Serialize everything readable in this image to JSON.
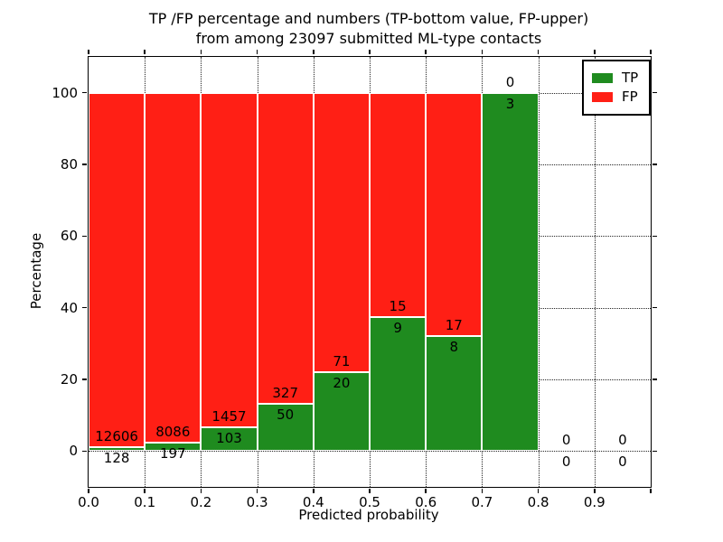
{
  "figure": {
    "title_line1": "TP /FP percentage and numbers (TP-bottom value, FP-upper)",
    "title_line2": "from among 23097 submitted ML-type contacts"
  },
  "axes": {
    "xlabel": "Predicted probability",
    "ylabel": "Percentage"
  },
  "legend": {
    "position": "upper right",
    "items": [
      {
        "label": "TP",
        "color": "#1F8B1F"
      },
      {
        "label": "FP",
        "color": "#FF1F15"
      }
    ]
  },
  "chart_data": {
    "type": "bar",
    "stacked": true,
    "normalized_to_percent": true,
    "title": "TP /FP percentage and numbers (TP-bottom value, FP-upper) from among 23097 submitted ML-type contacts",
    "total_contacts": 23097,
    "xlabel": "Predicted probability",
    "ylabel": "Percentage",
    "xlim": [
      0.0,
      1.0
    ],
    "ylim": [
      -10,
      110
    ],
    "grid": "dotted, both axes",
    "bar_edge_color": "#ffffff",
    "grid_color": "#000000",
    "series": [
      {
        "name": "TP",
        "color": "#1F8B1F",
        "counts": [
          128,
          197,
          103,
          50,
          20,
          9,
          8,
          3,
          0,
          0
        ]
      },
      {
        "name": "FP",
        "color": "#FF1F15",
        "counts": [
          12606,
          8086,
          1457,
          327,
          71,
          15,
          17,
          0,
          0,
          0
        ]
      }
    ],
    "bins": [
      {
        "x0": 0.0,
        "x1": 0.1,
        "tp": 128,
        "fp": 12606,
        "tp_pct": 1.01
      },
      {
        "x0": 0.1,
        "x1": 0.2,
        "tp": 197,
        "fp": 8086,
        "tp_pct": 2.38
      },
      {
        "x0": 0.2,
        "x1": 0.3,
        "tp": 103,
        "fp": 1457,
        "tp_pct": 6.6
      },
      {
        "x0": 0.3,
        "x1": 0.4,
        "tp": 50,
        "fp": 327,
        "tp_pct": 13.26
      },
      {
        "x0": 0.4,
        "x1": 0.5,
        "tp": 20,
        "fp": 71,
        "tp_pct": 21.98
      },
      {
        "x0": 0.5,
        "x1": 0.6,
        "tp": 9,
        "fp": 15,
        "tp_pct": 37.5
      },
      {
        "x0": 0.6,
        "x1": 0.7,
        "tp": 8,
        "fp": 17,
        "tp_pct": 32.0
      },
      {
        "x0": 0.7,
        "x1": 0.8,
        "tp": 3,
        "fp": 0,
        "tp_pct": 100.0
      },
      {
        "x0": 0.8,
        "x1": 0.9,
        "tp": 0,
        "fp": 0,
        "tp_pct": 0
      },
      {
        "x0": 0.9,
        "x1": 1.0,
        "tp": 0,
        "fp": 0,
        "tp_pct": 0
      }
    ],
    "x_ticks": [
      {
        "v": 0.0,
        "label": "0.0"
      },
      {
        "v": 0.1,
        "label": "0.1"
      },
      {
        "v": 0.2,
        "label": "0.2"
      },
      {
        "v": 0.3,
        "label": "0.3"
      },
      {
        "v": 0.4,
        "label": "0.4"
      },
      {
        "v": 0.5,
        "label": "0.5"
      },
      {
        "v": 0.6,
        "label": "0.6"
      },
      {
        "v": 0.7,
        "label": "0.7"
      },
      {
        "v": 0.8,
        "label": "0.8"
      },
      {
        "v": 0.9,
        "label": "0.9"
      },
      {
        "v": 1.0,
        "label": ""
      }
    ],
    "y_ticks": [
      {
        "v": 0,
        "label": "0"
      },
      {
        "v": 20,
        "label": "20"
      },
      {
        "v": 40,
        "label": "40"
      },
      {
        "v": 60,
        "label": "60"
      },
      {
        "v": 80,
        "label": "80"
      },
      {
        "v": 100,
        "label": "100"
      }
    ]
  }
}
